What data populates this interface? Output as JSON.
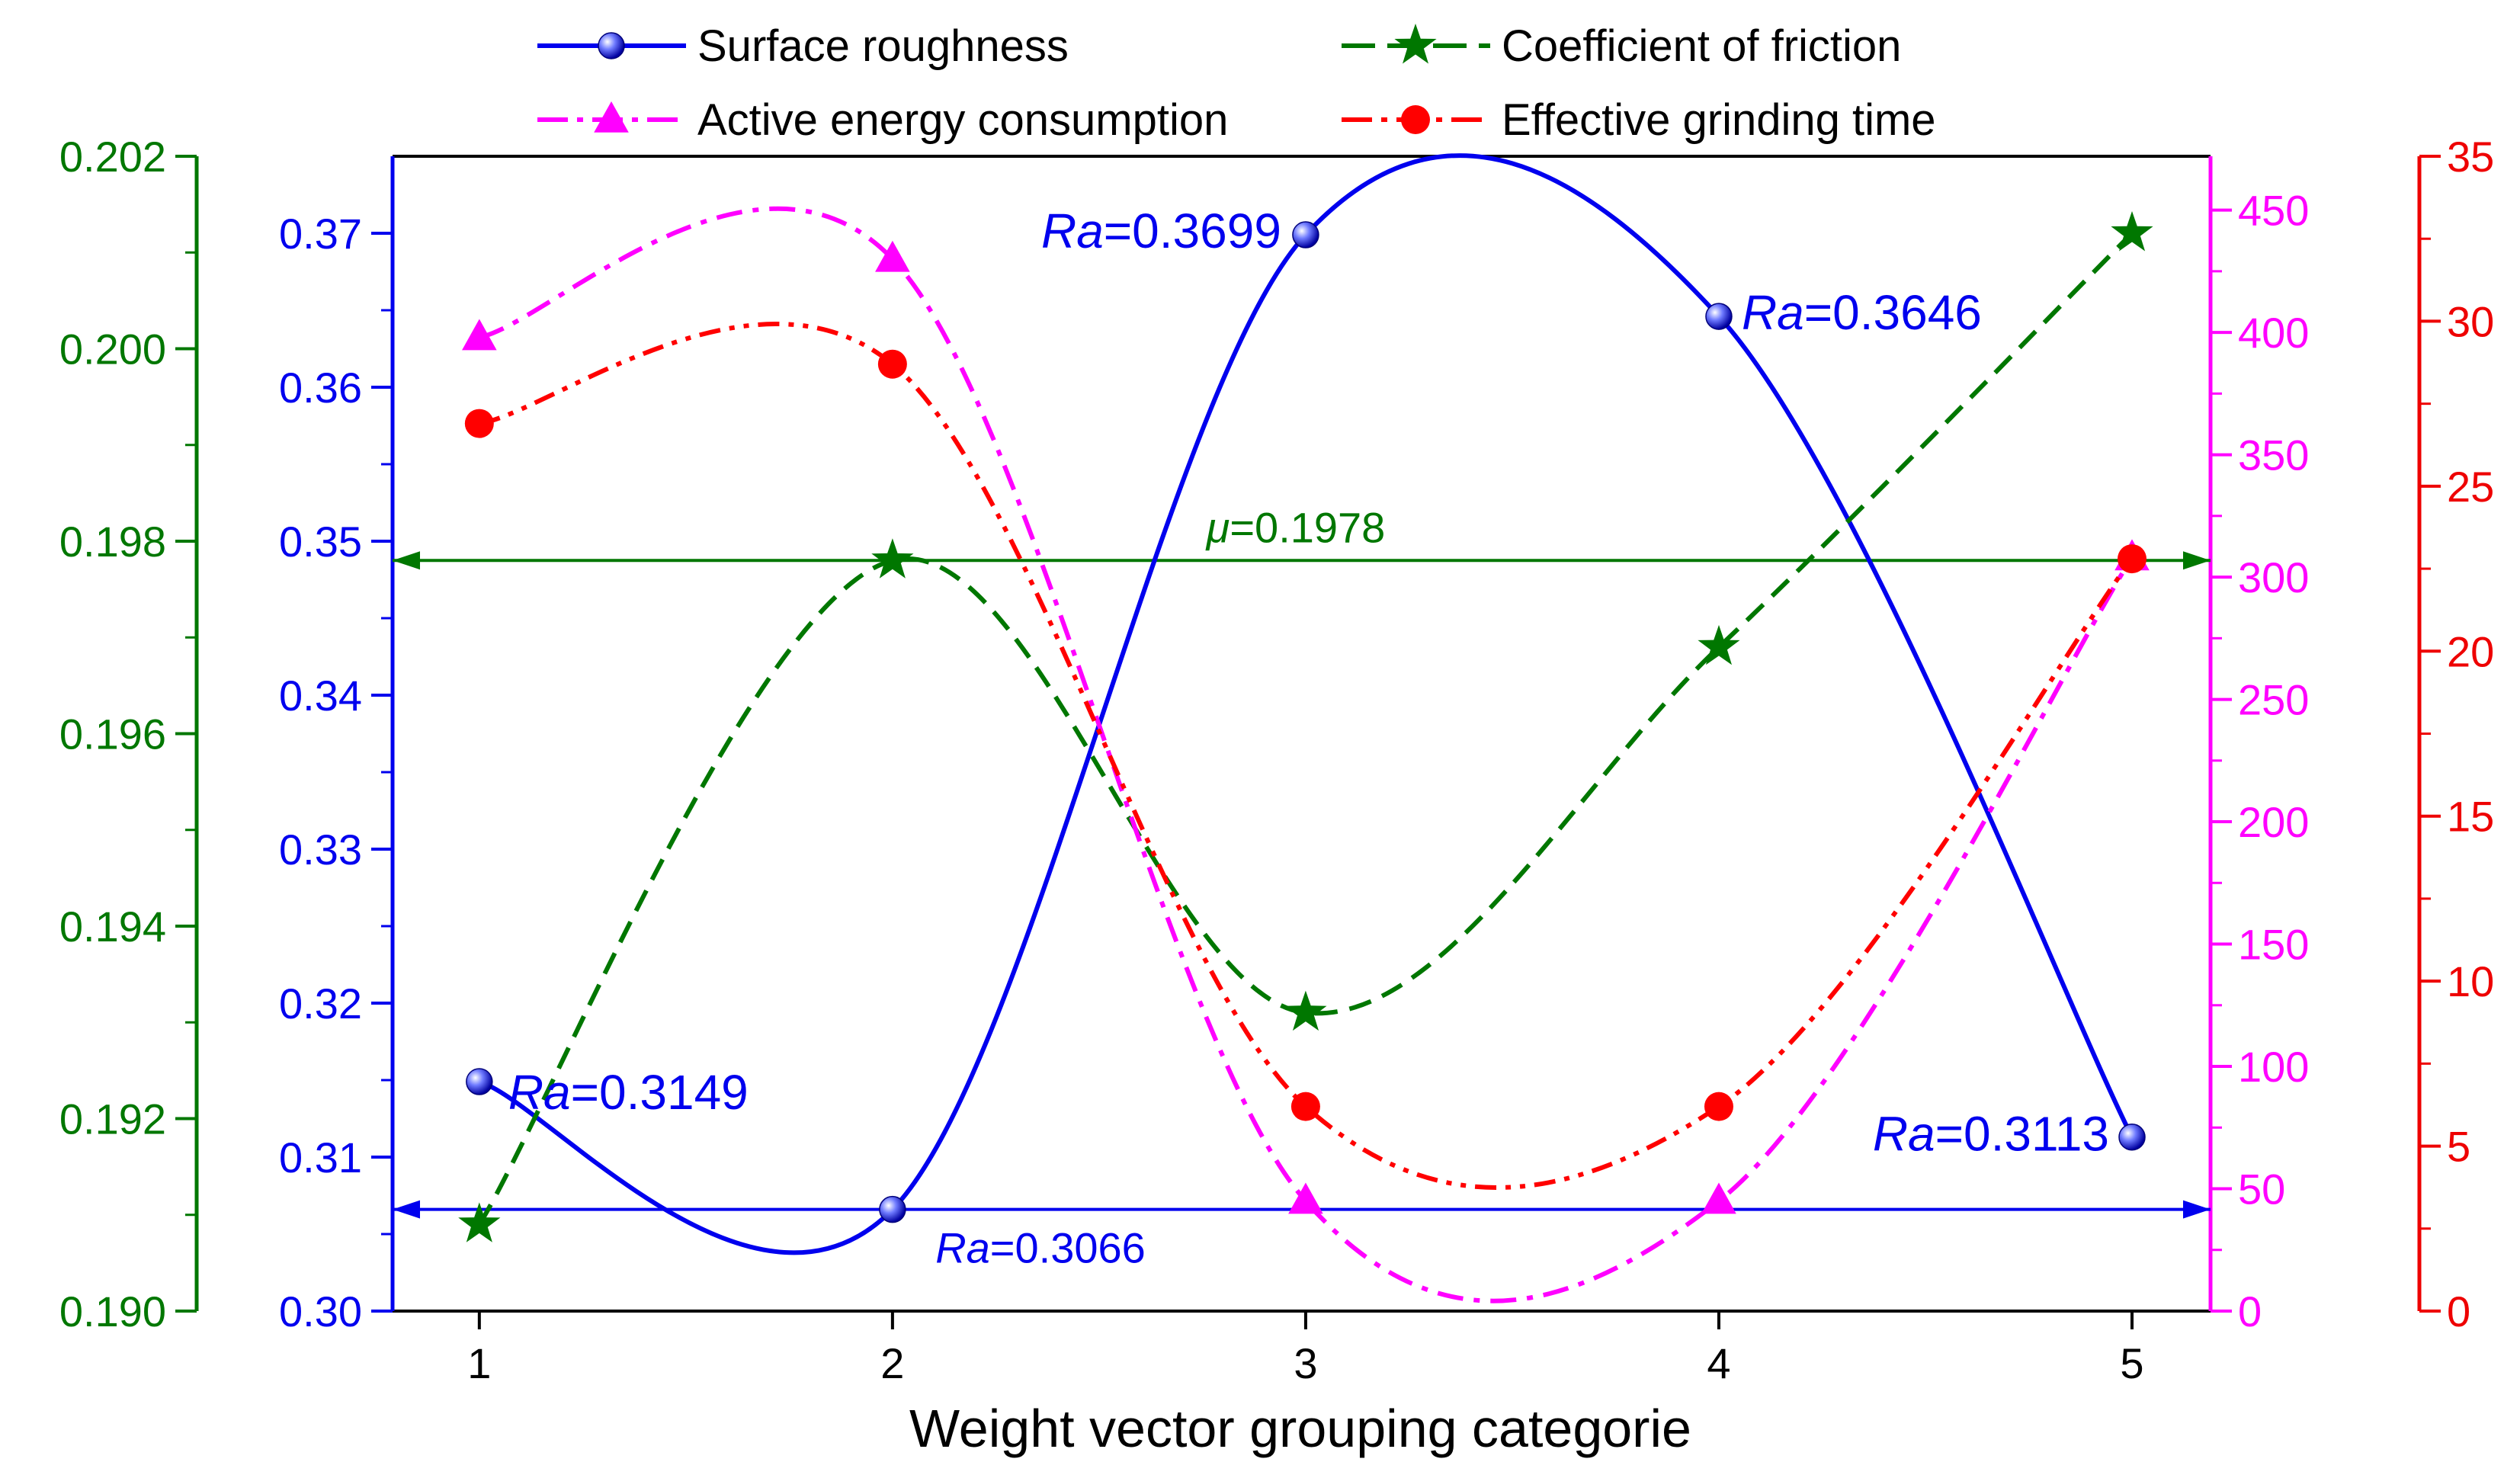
{
  "chart_data": {
    "type": "line",
    "xlabel": "Weight vector grouping categorie",
    "x": [
      1,
      2,
      3,
      4,
      5
    ],
    "x_ticks": [
      "1",
      "2",
      "3",
      "4",
      "5"
    ],
    "xlim": [
      0.79,
      5.19
    ],
    "axes": {
      "friction": {
        "side": "left-outer",
        "color": "#007700",
        "ylim": [
          0.19,
          0.202
        ],
        "ticks": [
          "0.190",
          "0.192",
          "0.194",
          "0.196",
          "0.198",
          "0.200",
          "0.202"
        ]
      },
      "roughness": {
        "side": "left-inner",
        "color": "#0000ee",
        "ylim": [
          0.3,
          0.375
        ],
        "ticks": [
          "0.30",
          "0.31",
          "0.32",
          "0.33",
          "0.34",
          "0.35",
          "0.36",
          "0.37"
        ]
      },
      "energy": {
        "side": "right-inner",
        "color": "#ff00ff",
        "ylim": [
          0,
          472
        ],
        "ticks": [
          "0",
          "50",
          "100",
          "150",
          "200",
          "250",
          "300",
          "350",
          "400",
          "450"
        ]
      },
      "time": {
        "side": "right-outer",
        "color": "#ee0000",
        "ylim": [
          0,
          35
        ],
        "ticks": [
          "0",
          "5",
          "10",
          "15",
          "20",
          "25",
          "30",
          "35"
        ]
      }
    },
    "series": [
      {
        "name": "Surface roughness",
        "axis": "roughness",
        "color": "#0000ee",
        "line": "solid",
        "marker": "sphere",
        "values": [
          0.3149,
          0.3066,
          0.3699,
          0.3646,
          0.3113
        ]
      },
      {
        "name": "Coefficient of friction",
        "axis": "friction",
        "color": "#007700",
        "line": "dashed",
        "marker": "star",
        "values": [
          0.1909,
          0.1978,
          0.1931,
          0.1969,
          0.2012
        ]
      },
      {
        "name": "Active energy consumption",
        "axis": "energy",
        "color": "#ff00ff",
        "line": "dashdot",
        "marker": "triangle",
        "values": [
          398,
          430,
          45,
          45,
          308
        ]
      },
      {
        "name": "Effective grinding time",
        "axis": "time",
        "color": "#ff0000",
        "line": "dashdotdot",
        "marker": "circle",
        "values": [
          26.9,
          28.7,
          6.2,
          6.2,
          22.8
        ]
      }
    ],
    "reference_lines": [
      {
        "axis": "friction",
        "value": 0.1978,
        "color": "#007700",
        "label_prefix": "μ",
        "label_value": "=0.1978"
      },
      {
        "axis": "roughness",
        "value": 0.3066,
        "color": "#0000ee",
        "label_prefix": "Ra",
        "label_value": "=0.3066"
      }
    ],
    "annotations": [
      {
        "prefix": "Ra",
        "value": "=0.3149",
        "color": "#0000ee"
      },
      {
        "prefix": "Ra",
        "value": "=0.3699",
        "color": "#0000ee"
      },
      {
        "prefix": "Ra",
        "value": "=0.3646",
        "color": "#0000ee"
      },
      {
        "prefix": "Ra",
        "value": "=0.3113",
        "color": "#0000ee"
      }
    ],
    "legend": {
      "position": "top",
      "columns": 2
    }
  }
}
